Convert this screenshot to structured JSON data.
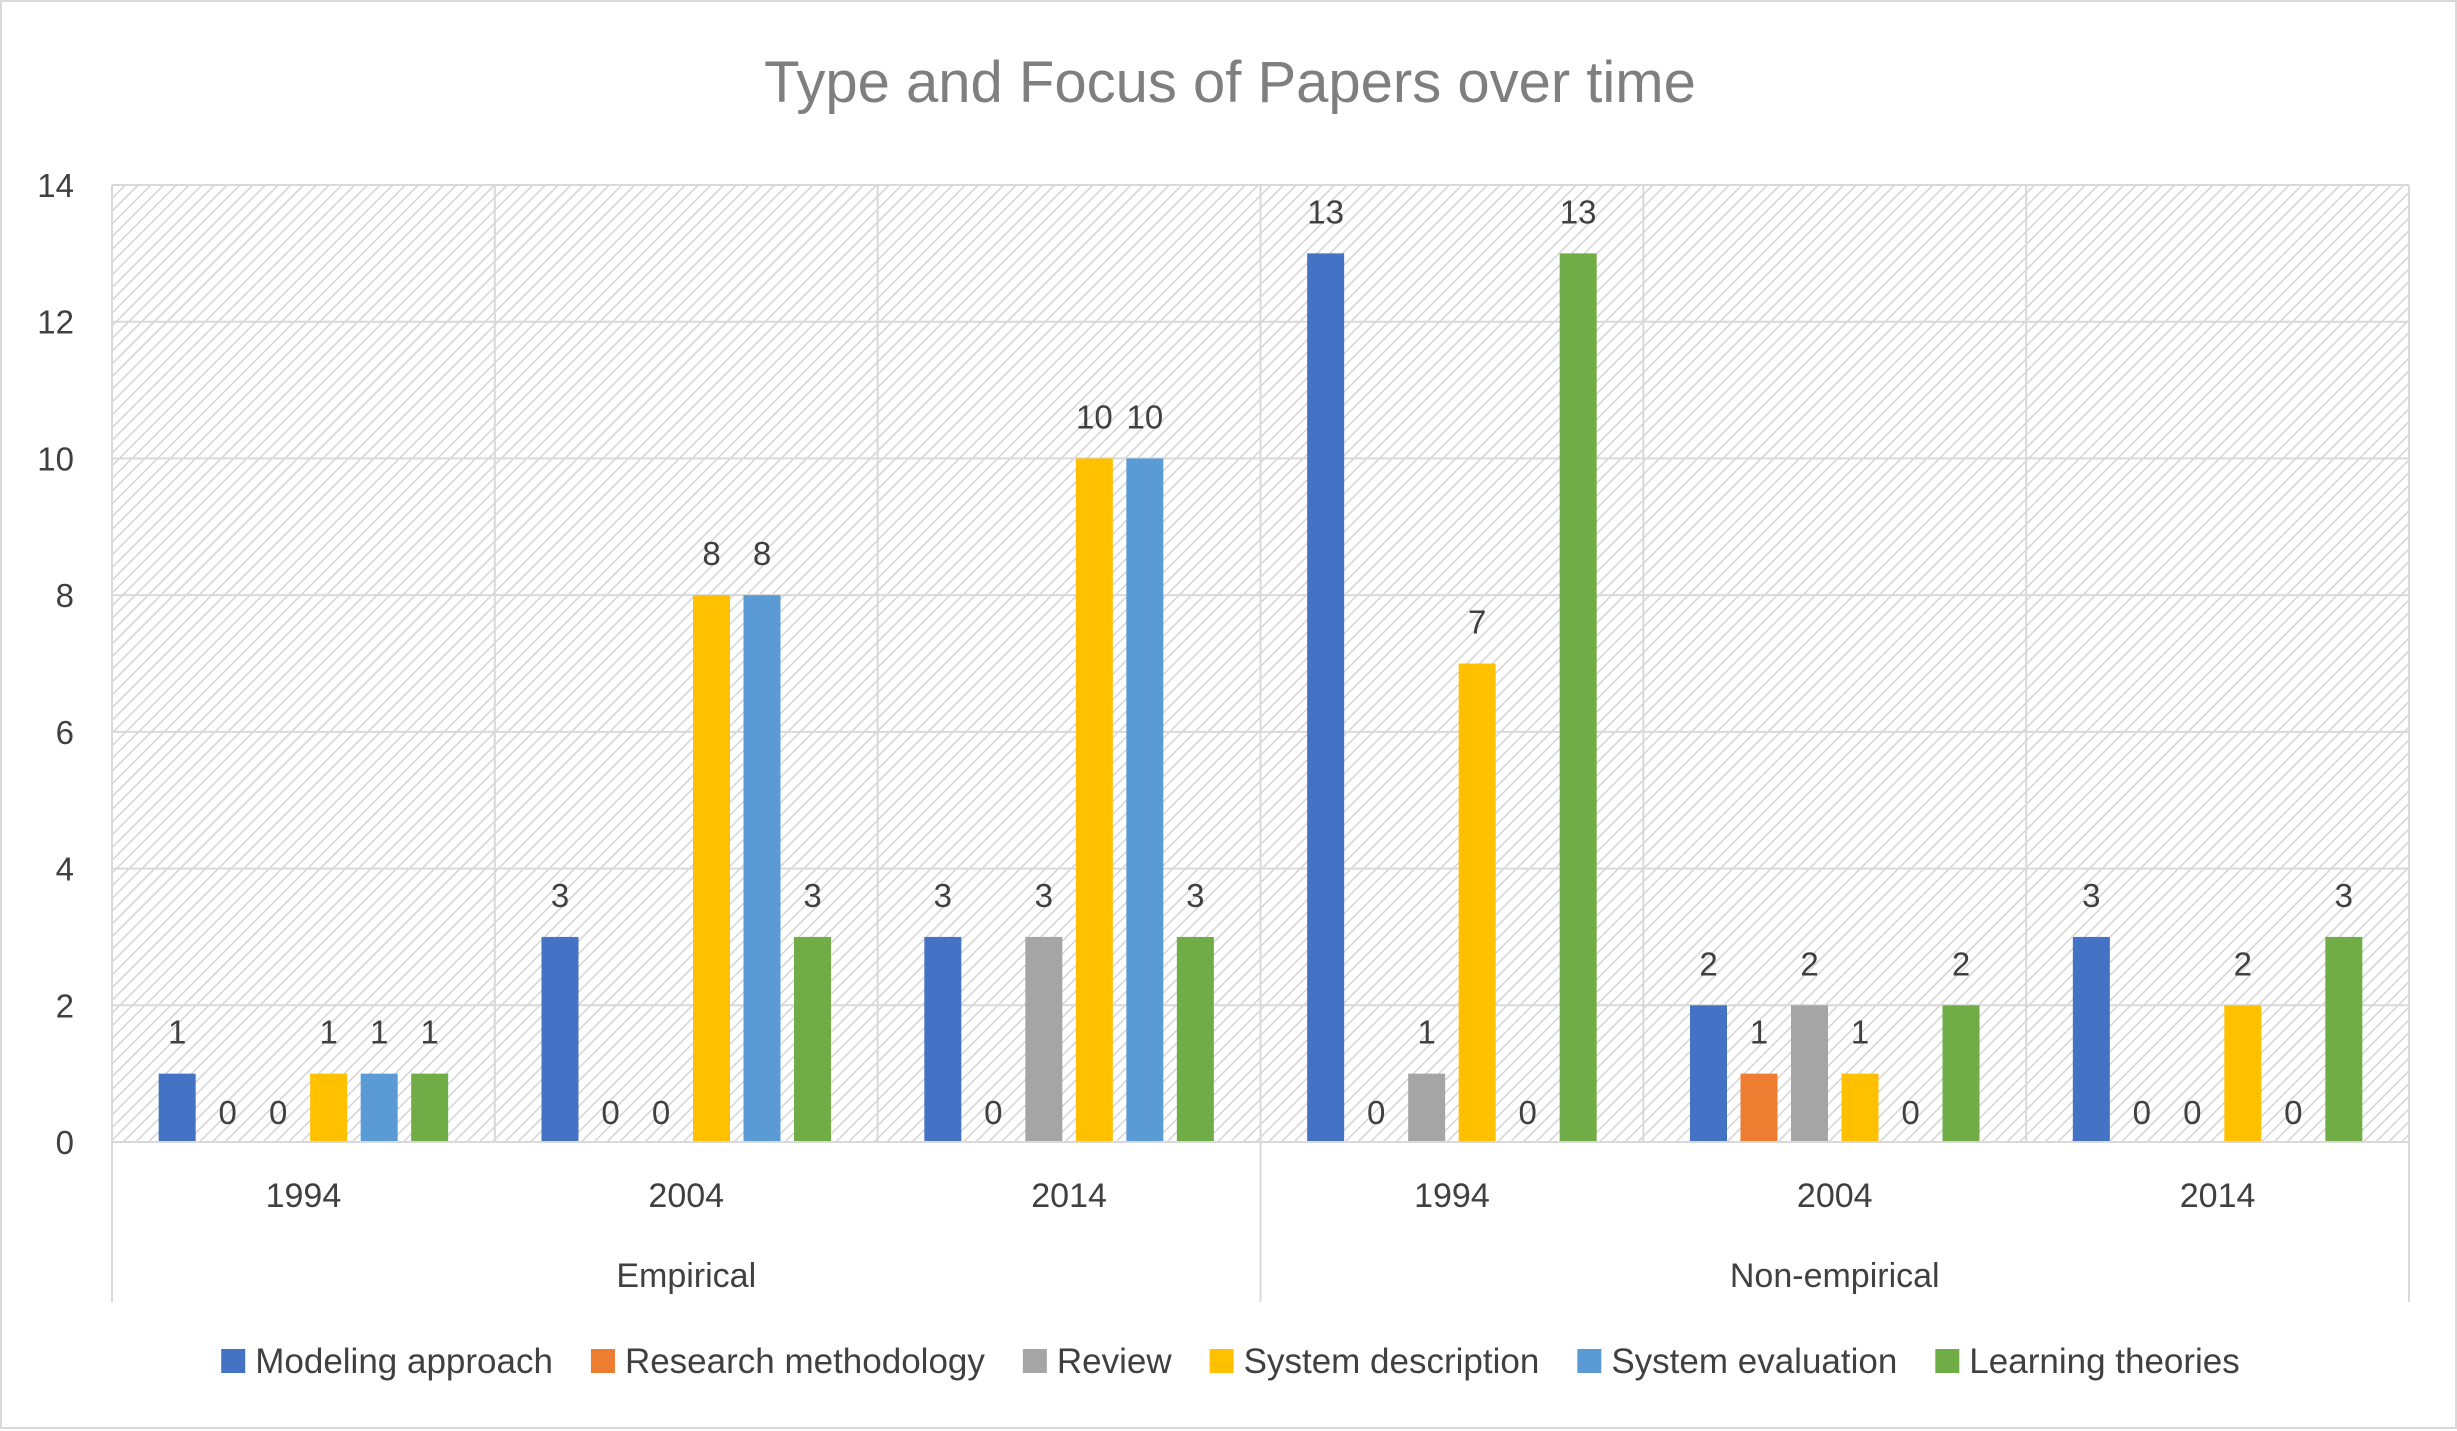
{
  "chart_data": {
    "type": "bar",
    "title": "Type and Focus of Papers over time",
    "xlabel": "",
    "ylabel": "",
    "ylim": [
      0,
      14
    ],
    "yticks": [
      "0",
      "2",
      "4",
      "6",
      "8",
      "10",
      "12",
      "14"
    ],
    "grid": true,
    "legend_position": "bottom",
    "groups": [
      {
        "label": "Empirical",
        "categories": [
          "1994",
          "2004",
          "2014"
        ]
      },
      {
        "label": "Non-empirical",
        "categories": [
          "1994",
          "2004",
          "2014"
        ]
      }
    ],
    "series": [
      {
        "name": "Modeling approach",
        "color": "#4472c4",
        "values": [
          1,
          3,
          3,
          13,
          2,
          3
        ]
      },
      {
        "name": "Research methodology",
        "color": "#ed7d31",
        "values": [
          0,
          0,
          0,
          0,
          1,
          0
        ]
      },
      {
        "name": "Review",
        "color": "#a5a5a5",
        "values": [
          0,
          0,
          3,
          1,
          2,
          0
        ]
      },
      {
        "name": "System description",
        "color": "#ffc000",
        "values": [
          1,
          8,
          10,
          7,
          1,
          2
        ]
      },
      {
        "name": "System evaluation",
        "color": "#5b9bd5",
        "values": [
          1,
          8,
          10,
          0,
          0,
          0
        ]
      },
      {
        "name": "Learning theories",
        "color": "#70ad47",
        "values": [
          1,
          3,
          3,
          13,
          2,
          3
        ]
      }
    ]
  }
}
